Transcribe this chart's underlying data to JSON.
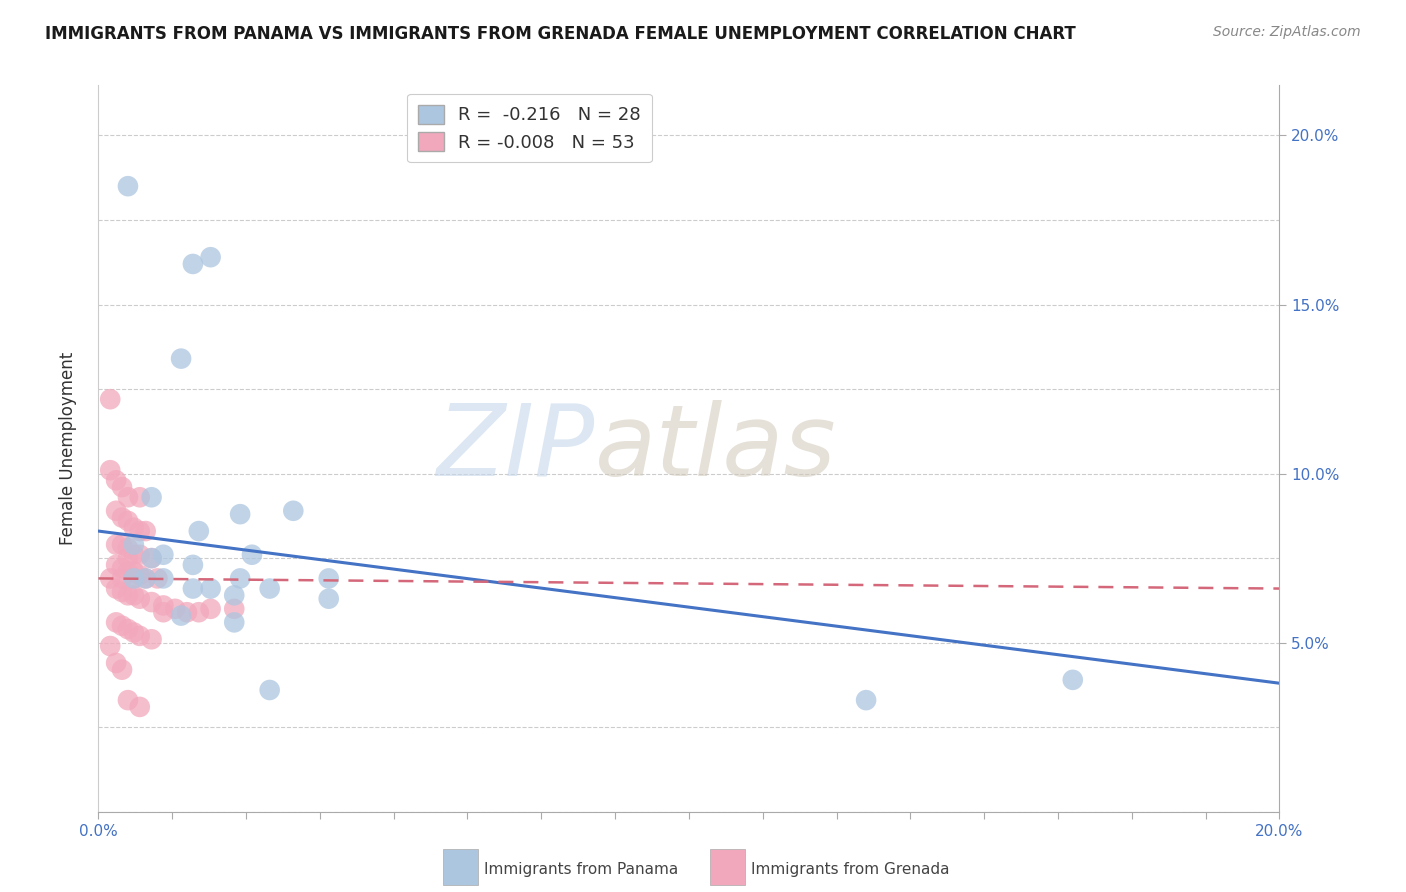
{
  "title": "IMMIGRANTS FROM PANAMA VS IMMIGRANTS FROM GRENADA FEMALE UNEMPLOYMENT CORRELATION CHART",
  "source": "Source: ZipAtlas.com",
  "ylabel": "Female Unemployment",
  "xlim": [
    0.0,
    0.2
  ],
  "ylim": [
    0.0,
    0.215
  ],
  "panama_color": "#adc6e0",
  "grenada_color": "#f2a8bc",
  "panama_line_color": "#4472c4",
  "grenada_line_color": "#d4687a",
  "watermark_zip_color": "#c5d8ec",
  "watermark_atlas_color": "#d0c8b8",
  "right_tick_color": "#4472c4",
  "bottom_tick_color": "#4472c4",
  "panama_scatter": [
    [
      0.005,
      0.185
    ],
    [
      0.016,
      0.162
    ],
    [
      0.019,
      0.164
    ],
    [
      0.014,
      0.134
    ],
    [
      0.009,
      0.093
    ],
    [
      0.017,
      0.083
    ],
    [
      0.024,
      0.088
    ],
    [
      0.033,
      0.089
    ],
    [
      0.006,
      0.079
    ],
    [
      0.009,
      0.075
    ],
    [
      0.011,
      0.076
    ],
    [
      0.016,
      0.073
    ],
    [
      0.026,
      0.076
    ],
    [
      0.006,
      0.069
    ],
    [
      0.008,
      0.069
    ],
    [
      0.011,
      0.069
    ],
    [
      0.016,
      0.066
    ],
    [
      0.019,
      0.066
    ],
    [
      0.023,
      0.064
    ],
    [
      0.029,
      0.066
    ],
    [
      0.039,
      0.063
    ],
    [
      0.014,
      0.058
    ],
    [
      0.023,
      0.056
    ],
    [
      0.029,
      0.036
    ],
    [
      0.13,
      0.033
    ],
    [
      0.165,
      0.039
    ],
    [
      0.024,
      0.069
    ],
    [
      0.039,
      0.069
    ]
  ],
  "grenada_scatter": [
    [
      0.002,
      0.122
    ],
    [
      0.003,
      0.098
    ],
    [
      0.004,
      0.096
    ],
    [
      0.002,
      0.101
    ],
    [
      0.005,
      0.093
    ],
    [
      0.007,
      0.093
    ],
    [
      0.003,
      0.089
    ],
    [
      0.004,
      0.087
    ],
    [
      0.005,
      0.086
    ],
    [
      0.006,
      0.084
    ],
    [
      0.007,
      0.083
    ],
    [
      0.008,
      0.083
    ],
    [
      0.003,
      0.079
    ],
    [
      0.004,
      0.079
    ],
    [
      0.005,
      0.078
    ],
    [
      0.006,
      0.076
    ],
    [
      0.007,
      0.076
    ],
    [
      0.003,
      0.073
    ],
    [
      0.004,
      0.072
    ],
    [
      0.005,
      0.071
    ],
    [
      0.006,
      0.071
    ],
    [
      0.007,
      0.07
    ],
    [
      0.003,
      0.066
    ],
    [
      0.004,
      0.065
    ],
    [
      0.005,
      0.064
    ],
    [
      0.006,
      0.064
    ],
    [
      0.007,
      0.063
    ],
    [
      0.009,
      0.062
    ],
    [
      0.011,
      0.061
    ],
    [
      0.013,
      0.06
    ],
    [
      0.017,
      0.059
    ],
    [
      0.003,
      0.056
    ],
    [
      0.004,
      0.055
    ],
    [
      0.005,
      0.054
    ],
    [
      0.006,
      0.053
    ],
    [
      0.007,
      0.052
    ],
    [
      0.009,
      0.051
    ],
    [
      0.003,
      0.044
    ],
    [
      0.004,
      0.042
    ],
    [
      0.005,
      0.033
    ],
    [
      0.007,
      0.031
    ],
    [
      0.002,
      0.069
    ],
    [
      0.004,
      0.069
    ],
    [
      0.006,
      0.069
    ],
    [
      0.008,
      0.069
    ],
    [
      0.01,
      0.069
    ],
    [
      0.005,
      0.075
    ],
    [
      0.009,
      0.075
    ],
    [
      0.011,
      0.059
    ],
    [
      0.015,
      0.059
    ],
    [
      0.019,
      0.06
    ],
    [
      0.023,
      0.06
    ],
    [
      0.002,
      0.049
    ]
  ],
  "panama_trendline_x": [
    0.0,
    0.2
  ],
  "panama_trendline_y": [
    0.083,
    0.038
  ],
  "grenada_trendline_x": [
    0.0,
    0.2
  ],
  "grenada_trendline_y": [
    0.069,
    0.066
  ]
}
